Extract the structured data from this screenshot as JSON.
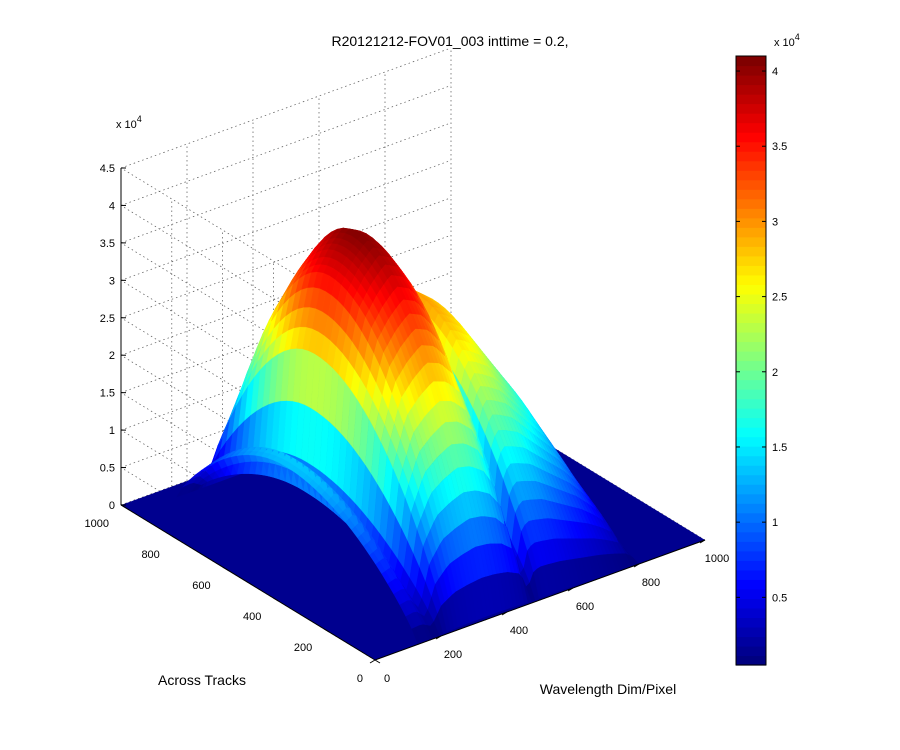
{
  "chart_data": {
    "type": "surface",
    "title": "R20121212-FOV01_003 inttime = 0.2,",
    "xlabel": "Wavelength Dim/Pixel",
    "ylabel": "Across Tracks",
    "zlabel": "",
    "x_ticks": [
      "0",
      "200",
      "400",
      "600",
      "800",
      "1000"
    ],
    "y_ticks": [
      "0",
      "200",
      "400",
      "600",
      "800",
      "1000"
    ],
    "z_ticks": [
      "0",
      "0.5",
      "1",
      "1.5",
      "2",
      "2.5",
      "3",
      "3.5",
      "4",
      "4.5"
    ],
    "z_multiplier": "x 10",
    "z_multiplier_exp": "4",
    "xlim": [
      0,
      1000
    ],
    "ylim": [
      0,
      1000
    ],
    "zlim": [
      0,
      45000
    ],
    "grid": true,
    "colormap": "jet",
    "colorbar": {
      "range": [
        500,
        41000
      ],
      "ticks": [
        "0.5",
        "1",
        "1.5",
        "2",
        "2.5",
        "3",
        "3.5",
        "4"
      ],
      "multiplier": "x 10",
      "multiplier_exp": "4"
    },
    "surface": {
      "active_x_range": [
        130,
        800
      ],
      "active_y_range": [
        0,
        950
      ],
      "wavelength_profile_x": [
        130,
        160,
        190,
        220,
        260,
        300,
        340,
        380,
        420,
        460,
        480,
        500,
        520,
        540,
        580,
        620,
        660,
        700,
        740,
        780,
        800
      ],
      "wavelength_profile_value": [
        13000,
        14000,
        8000,
        27000,
        36000,
        39000,
        41000,
        40000,
        37000,
        30000,
        10000,
        28000,
        30000,
        29500,
        28000,
        25000,
        22000,
        19000,
        15000,
        10000,
        3000
      ],
      "across_track_peak_y": 520,
      "background_value": 0
    }
  }
}
